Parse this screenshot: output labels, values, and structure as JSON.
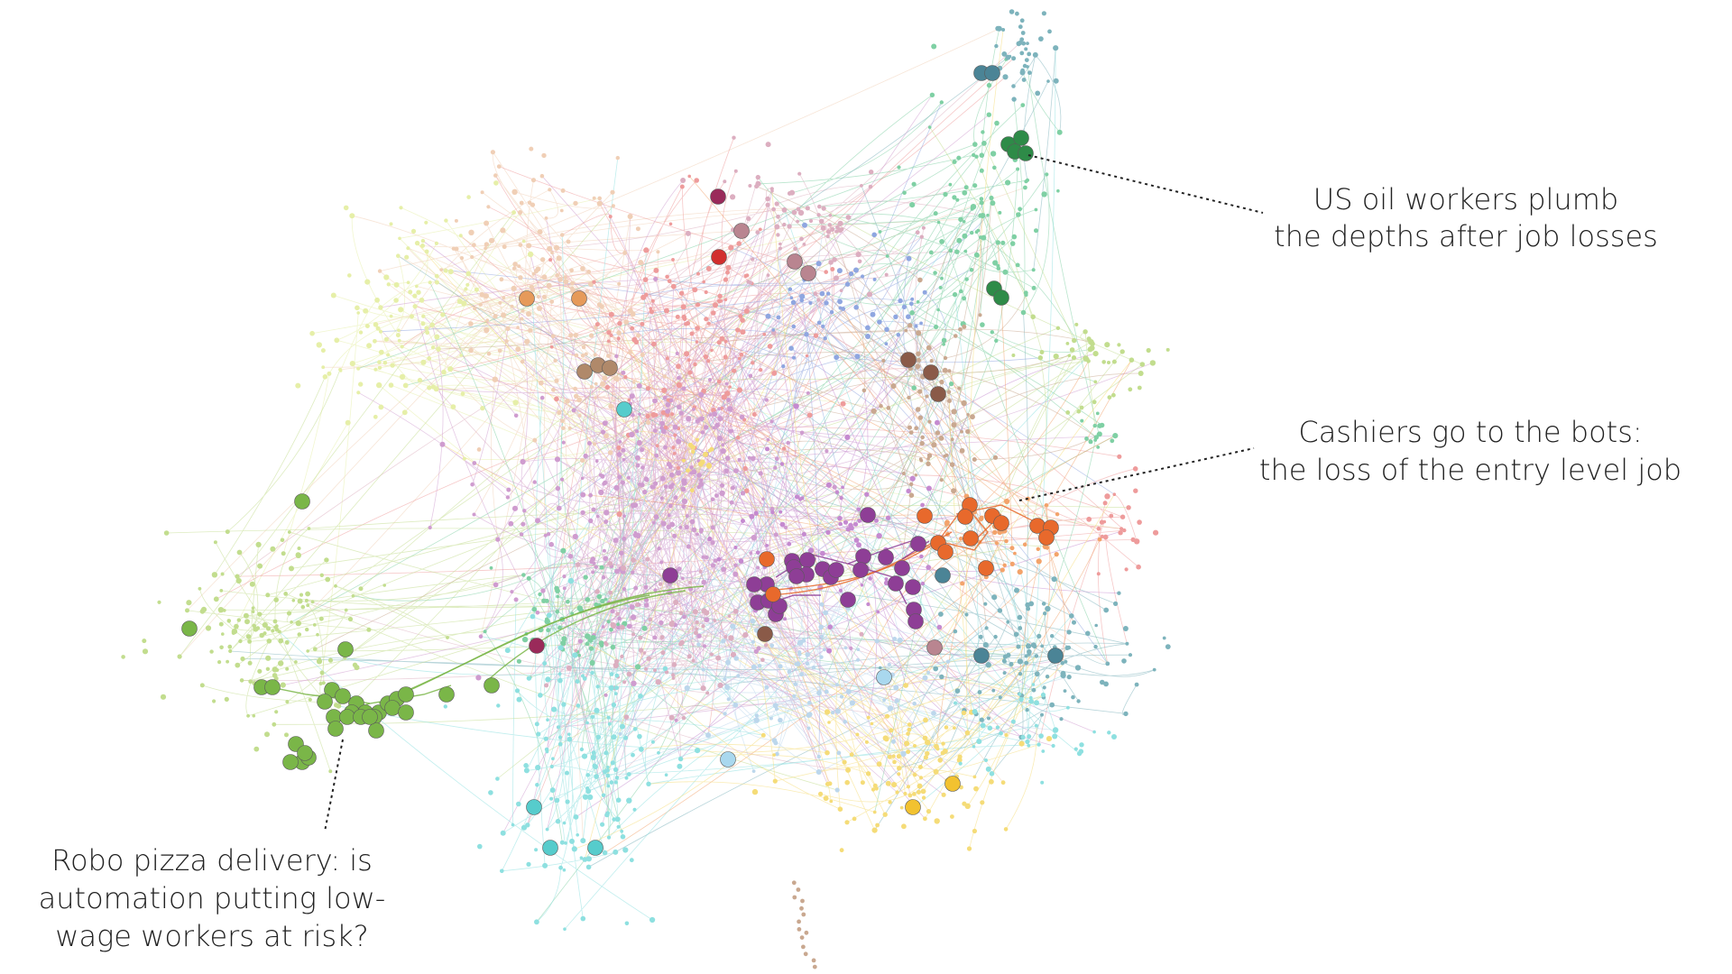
{
  "annotations": [
    {
      "id": "oil",
      "lines": [
        "US oil workers plumb",
        "the depths after job losses"
      ]
    },
    {
      "id": "cashiers",
      "lines": [
        "Cashiers go to the bots:",
        "the loss of the entry level job"
      ]
    },
    {
      "id": "pizza",
      "lines": [
        "Robo pizza delivery: is",
        "automation putting low-",
        "wage workers at risk?"
      ]
    }
  ],
  "colors": {
    "yellow_green": "#e6efa8",
    "peach": "#f0cfb6",
    "salmon": "#ee9b9b",
    "pink": "#dcaec0",
    "mauve": "#cf9ccf",
    "blue": "#8fa6e0",
    "mint": "#7fd0a4",
    "light_green": "#c2dd8e",
    "cyan": "#8ee0e0",
    "gold": "#f5dc78",
    "teal": "#7db3bc",
    "tan": "#c9a890",
    "orange": "#f3a36b",
    "purple": "#c58ad0",
    "lightblue": "#bcd7ec"
  },
  "highlight_colors": {
    "purple": "#8e3e96",
    "orange": "#e8692c",
    "green": "#7ab648",
    "dark_green": "#2e8b48",
    "teal": "#4b8496",
    "brown": "#8a5a48",
    "peach": "#e69a5a",
    "tan": "#b0896a",
    "cyan": "#56cccc",
    "pink": "#b98590",
    "maroon": "#9a2a5a",
    "red": "#d22e2e",
    "gold": "#f2c230",
    "sky": "#a9d8ee"
  }
}
